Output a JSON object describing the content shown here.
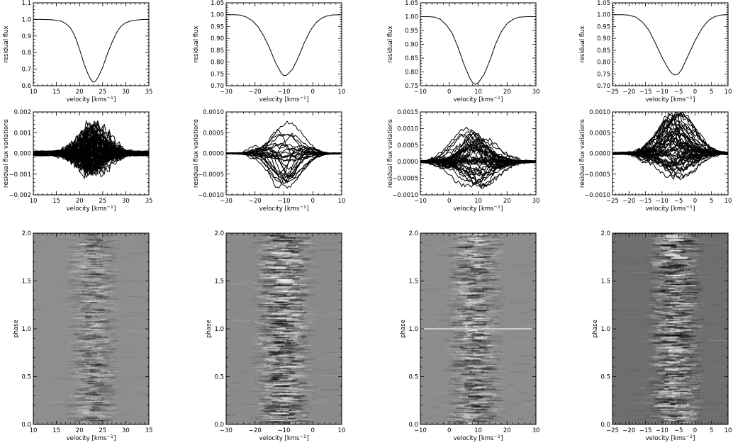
{
  "chart_data": [
    {
      "type": "line",
      "panel": "profile",
      "column": 1,
      "xlabel": "velocity [kms",
      "xlabel_sup": "−1",
      "xlabel_end": "]",
      "ylabel": "residual flux",
      "xlim": [
        10,
        35
      ],
      "ylim": [
        0.6,
        1.1
      ],
      "xticks": [
        {
          "v": 10,
          "label": "10"
        },
        {
          "v": 15,
          "label": "15"
        },
        {
          "v": 20,
          "label": "20"
        },
        {
          "v": 25,
          "label": "25"
        },
        {
          "v": 30,
          "label": "30"
        },
        {
          "v": 35,
          "label": "35"
        }
      ],
      "yticks": [
        {
          "v": 0.6,
          "label": "0.6"
        },
        {
          "v": 0.7,
          "label": "0.7"
        },
        {
          "v": 0.8,
          "label": "0.8"
        },
        {
          "v": 0.9,
          "label": "0.9"
        },
        {
          "v": 1.0,
          "label": "1.0"
        },
        {
          "v": 1.1,
          "label": "1.1"
        }
      ],
      "x": [
        10,
        12,
        14,
        16,
        17,
        18,
        19,
        20,
        21,
        22,
        22.5,
        23,
        23.5,
        24,
        25,
        26,
        27,
        28,
        29,
        30,
        31,
        32,
        33,
        34,
        35
      ],
      "y": [
        1.0,
        1.0,
        0.998,
        0.99,
        0.975,
        0.95,
        0.9,
        0.82,
        0.73,
        0.66,
        0.635,
        0.62,
        0.63,
        0.65,
        0.71,
        0.79,
        0.86,
        0.92,
        0.96,
        0.98,
        0.99,
        0.995,
        0.998,
        1.0,
        1.0
      ]
    },
    {
      "type": "line",
      "panel": "profile",
      "column": 2,
      "xlabel": "velocity [kms",
      "xlabel_sup": "−1",
      "xlabel_end": "]",
      "ylabel": "residual flux",
      "xlim": [
        -30,
        10
      ],
      "ylim": [
        0.7,
        1.05
      ],
      "xticks": [
        {
          "v": -30,
          "label": "−30"
        },
        {
          "v": -20,
          "label": "−20"
        },
        {
          "v": -10,
          "label": "−10"
        },
        {
          "v": 0,
          "label": "0"
        },
        {
          "v": 10,
          "label": "10"
        }
      ],
      "yticks": [
        {
          "v": 0.7,
          "label": "0.70"
        },
        {
          "v": 0.75,
          "label": "0.75"
        },
        {
          "v": 0.8,
          "label": "0.80"
        },
        {
          "v": 0.85,
          "label": "0.85"
        },
        {
          "v": 0.9,
          "label": "0.90"
        },
        {
          "v": 0.95,
          "label": "0.95"
        },
        {
          "v": 1.0,
          "label": "1.00"
        },
        {
          "v": 1.05,
          "label": "1.05"
        }
      ],
      "x": [
        -30,
        -27,
        -25,
        -23,
        -21,
        -19,
        -17,
        -15,
        -13,
        -11,
        -10,
        -9,
        -7,
        -5,
        -3,
        -1,
        1,
        3,
        5,
        7,
        10
      ],
      "y": [
        1.0,
        1.0,
        0.998,
        0.99,
        0.975,
        0.95,
        0.91,
        0.86,
        0.8,
        0.755,
        0.742,
        0.745,
        0.77,
        0.82,
        0.88,
        0.93,
        0.965,
        0.985,
        0.995,
        0.999,
        1.0
      ]
    },
    {
      "type": "line",
      "panel": "profile",
      "column": 3,
      "xlabel": "velocity [kms",
      "xlabel_sup": "−1",
      "xlabel_end": "]",
      "ylabel": "residual flux",
      "xlim": [
        -10,
        30
      ],
      "ylim": [
        0.75,
        1.05
      ],
      "xticks": [
        {
          "v": -10,
          "label": "−10"
        },
        {
          "v": 0,
          "label": "0"
        },
        {
          "v": 10,
          "label": "10"
        },
        {
          "v": 20,
          "label": "20"
        },
        {
          "v": 30,
          "label": "30"
        }
      ],
      "yticks": [
        {
          "v": 0.75,
          "label": "0.75"
        },
        {
          "v": 0.8,
          "label": "0.80"
        },
        {
          "v": 0.85,
          "label": "0.85"
        },
        {
          "v": 0.9,
          "label": "0.90"
        },
        {
          "v": 0.95,
          "label": "0.95"
        },
        {
          "v": 1.0,
          "label": "1.00"
        },
        {
          "v": 1.05,
          "label": "1.05"
        }
      ],
      "x": [
        -10,
        -7,
        -5,
        -3,
        -1,
        1,
        3,
        5,
        7,
        8,
        9,
        10,
        12,
        14,
        16,
        18,
        20,
        22,
        24,
        27,
        30
      ],
      "y": [
        1.0,
        1.0,
        0.998,
        0.99,
        0.97,
        0.94,
        0.89,
        0.83,
        0.78,
        0.762,
        0.755,
        0.76,
        0.79,
        0.84,
        0.9,
        0.945,
        0.975,
        0.99,
        0.998,
        1.0,
        1.0
      ]
    },
    {
      "type": "line",
      "panel": "profile",
      "column": 4,
      "xlabel": "velocity [kms",
      "xlabel_sup": "−1",
      "xlabel_end": "]",
      "ylabel": "residual flux",
      "xlim": [
        -25,
        10
      ],
      "ylim": [
        0.7,
        1.05
      ],
      "xticks": [
        {
          "v": -25,
          "label": "−25"
        },
        {
          "v": -20,
          "label": "−20"
        },
        {
          "v": -15,
          "label": "−15"
        },
        {
          "v": -10,
          "label": "−10"
        },
        {
          "v": -5,
          "label": "−5"
        },
        {
          "v": 0,
          "label": "0"
        },
        {
          "v": 5,
          "label": "5"
        },
        {
          "v": 10,
          "label": "10"
        }
      ],
      "yticks": [
        {
          "v": 0.7,
          "label": "0.70"
        },
        {
          "v": 0.75,
          "label": "0.75"
        },
        {
          "v": 0.8,
          "label": "0.80"
        },
        {
          "v": 0.85,
          "label": "0.85"
        },
        {
          "v": 0.9,
          "label": "0.90"
        },
        {
          "v": 0.95,
          "label": "0.95"
        },
        {
          "v": 1.0,
          "label": "1.00"
        },
        {
          "v": 1.05,
          "label": "1.05"
        }
      ],
      "x": [
        -25,
        -22,
        -20,
        -18,
        -16,
        -14,
        -12,
        -10,
        -8,
        -7,
        -6,
        -5,
        -4,
        -2,
        0,
        2,
        4,
        6,
        8,
        10
      ],
      "y": [
        1.0,
        1.0,
        0.998,
        0.99,
        0.97,
        0.935,
        0.88,
        0.82,
        0.77,
        0.752,
        0.745,
        0.75,
        0.77,
        0.83,
        0.89,
        0.94,
        0.975,
        0.992,
        0.999,
        1.0
      ]
    },
    {
      "type": "line",
      "panel": "variations",
      "column": 1,
      "xlabel": "velocity [kms",
      "xlabel_sup": "−1",
      "xlabel_end": "]",
      "ylabel": "residual flux variations",
      "xlim": [
        10,
        35
      ],
      "ylim": [
        -0.002,
        0.002
      ],
      "xticks": [
        {
          "v": 10,
          "label": "10"
        },
        {
          "v": 15,
          "label": "15"
        },
        {
          "v": 20,
          "label": "20"
        },
        {
          "v": 25,
          "label": "25"
        },
        {
          "v": 30,
          "label": "30"
        },
        {
          "v": 35,
          "label": "35"
        }
      ],
      "yticks": [
        {
          "v": -0.002,
          "label": "−0.002"
        },
        {
          "v": -0.001,
          "label": "−0.001"
        },
        {
          "v": 0,
          "label": "0.000"
        },
        {
          "v": 0.001,
          "label": "0.001"
        },
        {
          "v": 0.002,
          "label": "0.002"
        }
      ],
      "center": 23,
      "width": 4.0,
      "base_noise": 0.0002,
      "amplitude_max": 0.00145,
      "amplitude_min": -0.0011,
      "n_curves": 90,
      "seed": 11
    },
    {
      "type": "line",
      "panel": "variations",
      "column": 2,
      "xlabel": "velocity [kms",
      "xlabel_sup": "−1",
      "xlabel_end": "]",
      "ylabel": "residual flux variations",
      "xlim": [
        -30,
        10
      ],
      "ylim": [
        -0.001,
        0.001
      ],
      "xticks": [
        {
          "v": -30,
          "label": "−30"
        },
        {
          "v": -20,
          "label": "−20"
        },
        {
          "v": -10,
          "label": "−10"
        },
        {
          "v": 0,
          "label": "0"
        },
        {
          "v": 10,
          "label": "10"
        }
      ],
      "yticks": [
        {
          "v": -0.001,
          "label": "−0.0010"
        },
        {
          "v": -0.0005,
          "label": "−0.0005"
        },
        {
          "v": 0,
          "label": "0.0000"
        },
        {
          "v": 0.0005,
          "label": "0.0005"
        },
        {
          "v": 0.001,
          "label": "0.0010"
        }
      ],
      "center": -10,
      "width": 7.0,
      "base_noise": 3e-05,
      "amplitude_max": 0.00085,
      "amplitude_min": -0.00095,
      "n_curves": 28,
      "seed": 23
    },
    {
      "type": "line",
      "panel": "variations",
      "column": 3,
      "xlabel": "velocity [kms",
      "xlabel_sup": "−1",
      "xlabel_end": "]",
      "ylabel": "residual flux variations",
      "xlim": [
        -10,
        30
      ],
      "ylim": [
        -0.001,
        0.0015
      ],
      "xticks": [
        {
          "v": -10,
          "label": "−10"
        },
        {
          "v": 0,
          "label": "0"
        },
        {
          "v": 10,
          "label": "10"
        },
        {
          "v": 20,
          "label": "20"
        },
        {
          "v": 30,
          "label": "30"
        }
      ],
      "yticks": [
        {
          "v": -0.001,
          "label": "−0.0010"
        },
        {
          "v": -0.0005,
          "label": "−0.0005"
        },
        {
          "v": 0,
          "label": "0.0000"
        },
        {
          "v": 0.0005,
          "label": "0.0005"
        },
        {
          "v": 0.001,
          "label": "0.0010"
        },
        {
          "v": 0.0015,
          "label": "0.0015"
        }
      ],
      "center": 9,
      "width": 8.0,
      "base_noise": 6e-05,
      "amplitude_max": 0.00105,
      "amplitude_min": -0.00085,
      "n_curves": 45,
      "seed": 37
    },
    {
      "type": "line",
      "panel": "variations",
      "column": 4,
      "xlabel": "velocity [kms",
      "xlabel_sup": "−1",
      "xlabel_end": "]",
      "ylabel": "residual flux variations",
      "xlim": [
        -25,
        10
      ],
      "ylim": [
        -0.001,
        0.001
      ],
      "xticks": [
        {
          "v": -25,
          "label": "−25"
        },
        {
          "v": -20,
          "label": "−20"
        },
        {
          "v": -15,
          "label": "−15"
        },
        {
          "v": -10,
          "label": "−10"
        },
        {
          "v": -5,
          "label": "−5"
        },
        {
          "v": 0,
          "label": "0"
        },
        {
          "v": 5,
          "label": "5"
        },
        {
          "v": 10,
          "label": "10"
        }
      ],
      "yticks": [
        {
          "v": -0.001,
          "label": "−0.0010"
        },
        {
          "v": -0.0005,
          "label": "−0.0005"
        },
        {
          "v": 0,
          "label": "0.0000"
        },
        {
          "v": 0.0005,
          "label": "0.0005"
        },
        {
          "v": 0.001,
          "label": "0.0010"
        }
      ],
      "center": -6,
      "width": 6.5,
      "base_noise": 5e-05,
      "amplitude_max": 0.00095,
      "amplitude_min": -0.0006,
      "n_curves": 55,
      "seed": 51
    },
    {
      "type": "heatmap",
      "panel": "dynamic",
      "column": 1,
      "xlabel": "velocity [kms",
      "xlabel_sup": "−1",
      "xlabel_end": "]",
      "ylabel": "phase",
      "xlim": [
        10,
        35
      ],
      "ylim": [
        0,
        2
      ],
      "xticks": [
        {
          "v": 10,
          "label": "10"
        },
        {
          "v": 15,
          "label": "15"
        },
        {
          "v": 20,
          "label": "20"
        },
        {
          "v": 25,
          "label": "25"
        },
        {
          "v": 30,
          "label": "30"
        },
        {
          "v": 35,
          "label": "35"
        }
      ],
      "yticks": [
        {
          "v": 0,
          "label": "0.0"
        },
        {
          "v": 0.5,
          "label": "0.5"
        },
        {
          "v": 1,
          "label": "1.0"
        },
        {
          "v": 1.5,
          "label": "1.5"
        },
        {
          "v": 2,
          "label": "2.0"
        }
      ],
      "center": 23,
      "width": 4.5,
      "background": "#8e8e8e",
      "contrast": 0.55,
      "seed": 5
    },
    {
      "type": "heatmap",
      "panel": "dynamic",
      "column": 2,
      "xlabel": "velocity [kms",
      "xlabel_sup": "−1",
      "xlabel_end": "]",
      "ylabel": "phase",
      "xlim": [
        -30,
        10
      ],
      "ylim": [
        0,
        2
      ],
      "xticks": [
        {
          "v": -30,
          "label": "−30"
        },
        {
          "v": -20,
          "label": "−20"
        },
        {
          "v": -10,
          "label": "−10"
        },
        {
          "v": 0,
          "label": "0"
        },
        {
          "v": 10,
          "label": "10"
        }
      ],
      "yticks": [
        {
          "v": 0,
          "label": "0.0"
        },
        {
          "v": 0.5,
          "label": "0.5"
        },
        {
          "v": 1,
          "label": "1.0"
        },
        {
          "v": 1.5,
          "label": "1.5"
        },
        {
          "v": 2,
          "label": "2.0"
        }
      ],
      "center": -10,
      "width": 8.0,
      "background": "#8a8a8a",
      "contrast": 1.0,
      "seed": 17
    },
    {
      "type": "heatmap",
      "panel": "dynamic",
      "column": 3,
      "xlabel": "velocity [kms",
      "xlabel_sup": "−1",
      "xlabel_end": "]",
      "ylabel": "phase",
      "xlim": [
        -10,
        30
      ],
      "ylim": [
        0,
        2
      ],
      "xticks": [
        {
          "v": -10,
          "label": "−10"
        },
        {
          "v": 0,
          "label": "0"
        },
        {
          "v": 10,
          "label": "10"
        },
        {
          "v": 20,
          "label": "20"
        },
        {
          "v": 30,
          "label": "30"
        }
      ],
      "yticks": [
        {
          "v": 0,
          "label": "0.0"
        },
        {
          "v": 0.5,
          "label": "0.5"
        },
        {
          "v": 1,
          "label": "1.0"
        },
        {
          "v": 1.5,
          "label": "1.5"
        },
        {
          "v": 2,
          "label": "2.0"
        }
      ],
      "center": 9,
      "width": 7.5,
      "background": "#8c8c8c",
      "contrast": 0.8,
      "seed": 29,
      "highlight_phase": 1.0
    },
    {
      "type": "heatmap",
      "panel": "dynamic",
      "column": 4,
      "xlabel": "velocity [kms",
      "xlabel_sup": "−1",
      "xlabel_end": "]",
      "ylabel": "phase",
      "xlim": [
        -25,
        10
      ],
      "ylim": [
        0,
        2
      ],
      "xticks": [
        {
          "v": -25,
          "label": "−25"
        },
        {
          "v": -20,
          "label": "−20"
        },
        {
          "v": -15,
          "label": "−15"
        },
        {
          "v": -10,
          "label": "−10"
        },
        {
          "v": -5,
          "label": "−5"
        },
        {
          "v": 0,
          "label": "0"
        },
        {
          "v": 5,
          "label": "5"
        },
        {
          "v": 10,
          "label": "10"
        }
      ],
      "yticks": [
        {
          "v": 0,
          "label": "0.0"
        },
        {
          "v": 0.5,
          "label": "0.5"
        },
        {
          "v": 1,
          "label": "1.0"
        },
        {
          "v": 1.5,
          "label": "1.5"
        },
        {
          "v": 2,
          "label": "2.0"
        }
      ],
      "center": -6,
      "width": 6.5,
      "background": "#6e6e6e",
      "contrast": 0.95,
      "seed": 43
    }
  ]
}
